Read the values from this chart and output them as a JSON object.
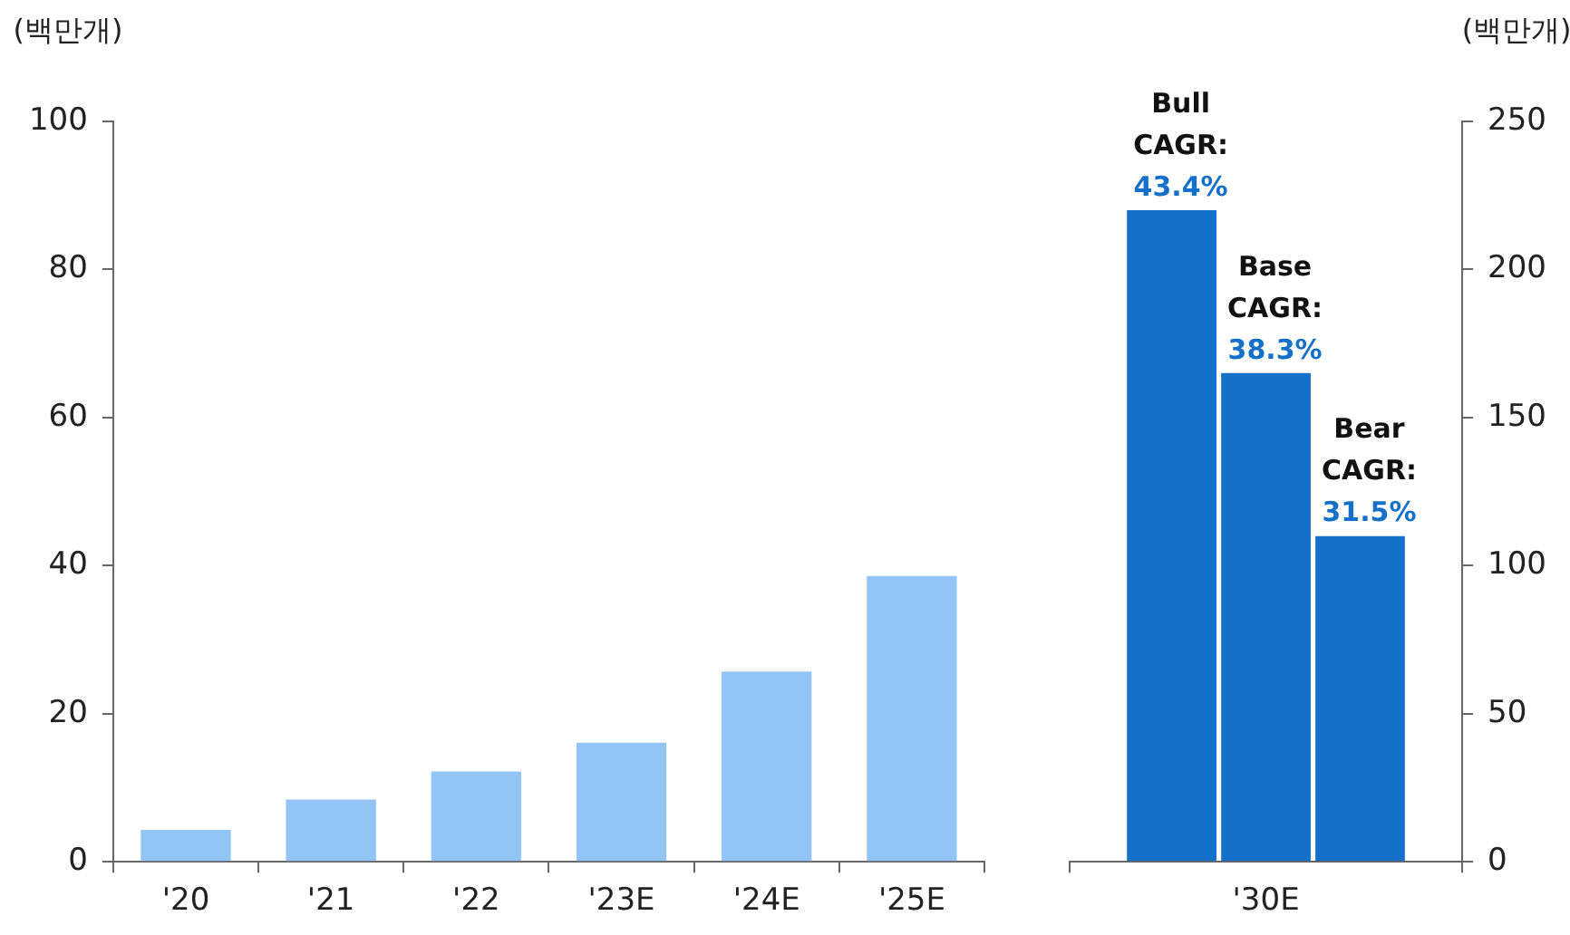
{
  "chart_data": [
    {
      "type": "bar",
      "ylabel": "(백만개)",
      "categories": [
        "'20",
        "'21",
        "'22",
        "'23E",
        "'24E",
        "'25E"
      ],
      "values": [
        4.3,
        8.4,
        12.2,
        16.1,
        25.7,
        38.6
      ],
      "color": "#92c5f5",
      "ylim": [
        0,
        100
      ],
      "yticks": [
        0,
        20,
        40,
        60,
        80,
        100
      ]
    },
    {
      "type": "bar",
      "y2label": "(백만개)",
      "categories": [
        "'30E"
      ],
      "series": [
        {
          "color": "#1470c8",
          "values": [
            220
          ],
          "axis": "y2"
        },
        {
          "color": "#1470c8",
          "values": [
            165
          ],
          "axis": "y2"
        },
        {
          "color": "#1470c8",
          "values": [
            110
          ],
          "axis": "y2"
        }
      ],
      "y2lim": [
        0,
        250
      ],
      "y2ticks": [
        0,
        50,
        100,
        150,
        200,
        250
      ],
      "annotations": [
        "Bull CAGR: 43.4%",
        "Base CAGR: 38.3%",
        "Bear CAGR: 31.5%"
      ]
    }
  ]
}
